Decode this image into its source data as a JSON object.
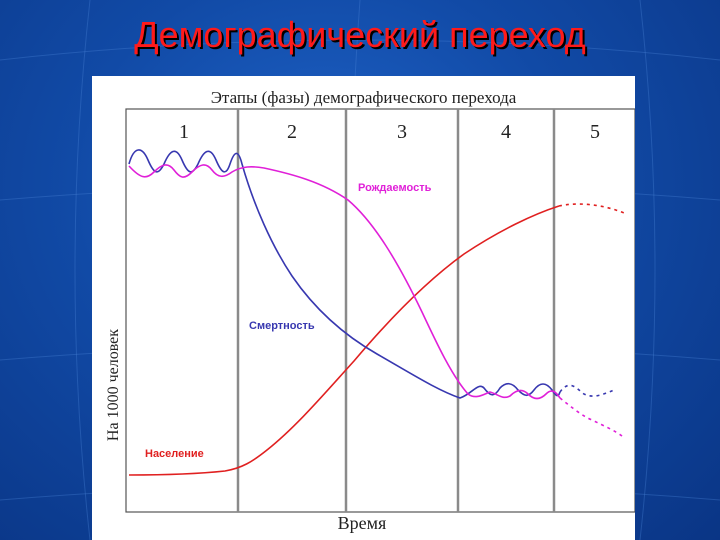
{
  "slide": {
    "title": "Демографический переход"
  },
  "figure": {
    "title": "Этапы (фазы) демографического перехода",
    "phases": [
      "1",
      "2",
      "3",
      "4",
      "5"
    ],
    "y_label": "На 1000 человек",
    "x_label": "Время",
    "curves": {
      "birth_rate": {
        "label": "Рождаемость",
        "color": "#e020d8"
      },
      "death_rate": {
        "label": "Смертность",
        "color": "#3838b0"
      },
      "population": {
        "label": "Население",
        "color": "#e02020"
      }
    }
  }
}
